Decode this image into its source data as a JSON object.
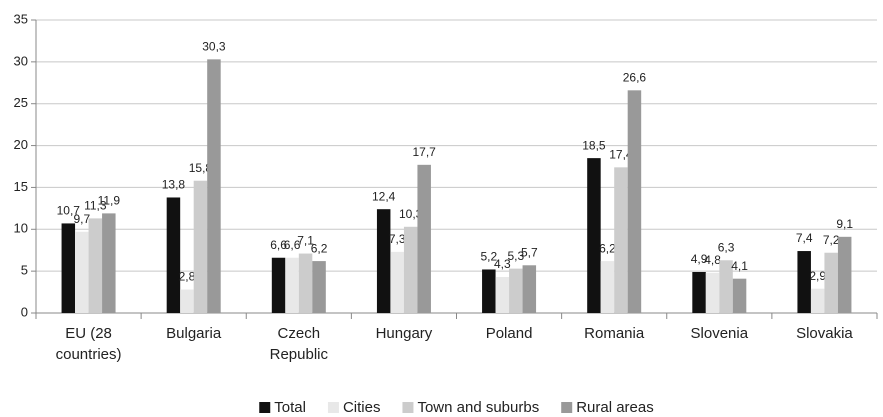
{
  "chart_data": {
    "type": "bar",
    "categories": [
      "EU (28 countries)",
      "Bulgaria",
      "Czech Republic",
      "Hungary",
      "Poland",
      "Romania",
      "Slovenia",
      "Slovakia"
    ],
    "series": [
      {
        "name": "Total",
        "color": "#111111",
        "values": [
          10.7,
          13.8,
          6.6,
          12.4,
          5.2,
          18.5,
          4.9,
          7.4
        ],
        "value_labels": [
          "10,7",
          "13,8",
          "6,6",
          "12,4",
          "5,2",
          "18,5",
          "4,9",
          "7,4"
        ]
      },
      {
        "name": "Cities",
        "color": "#e8e8e8",
        "values": [
          9.7,
          2.8,
          6.6,
          7.3,
          4.3,
          6.2,
          4.8,
          2.9
        ],
        "value_labels": [
          "9,7",
          "2,8",
          "6,6",
          "7,3",
          "4,3",
          "6,2",
          "4,8",
          "2,9"
        ]
      },
      {
        "name": "Town and suburbs",
        "color": "#cccccc",
        "values": [
          11.3,
          15.8,
          7.1,
          10.3,
          5.3,
          17.4,
          6.3,
          7.2
        ],
        "value_labels": [
          "11,3",
          "15,8",
          "7,1",
          "10,3",
          "5,3",
          "17,4",
          "6,3",
          "7,2"
        ]
      },
      {
        "name": "Rural areas",
        "color": "#999999",
        "values": [
          11.9,
          30.3,
          6.2,
          17.7,
          5.7,
          26.6,
          4.1,
          9.1
        ],
        "value_labels": [
          "11,9",
          "30,3",
          "6,2",
          "17,7",
          "5,7",
          "26,6",
          "4,1",
          "9,1"
        ]
      }
    ],
    "ylim": [
      0,
      35
    ],
    "yticks": [
      0,
      5,
      10,
      15,
      20,
      25,
      30,
      35
    ],
    "grid": true,
    "legend": "bottom"
  }
}
